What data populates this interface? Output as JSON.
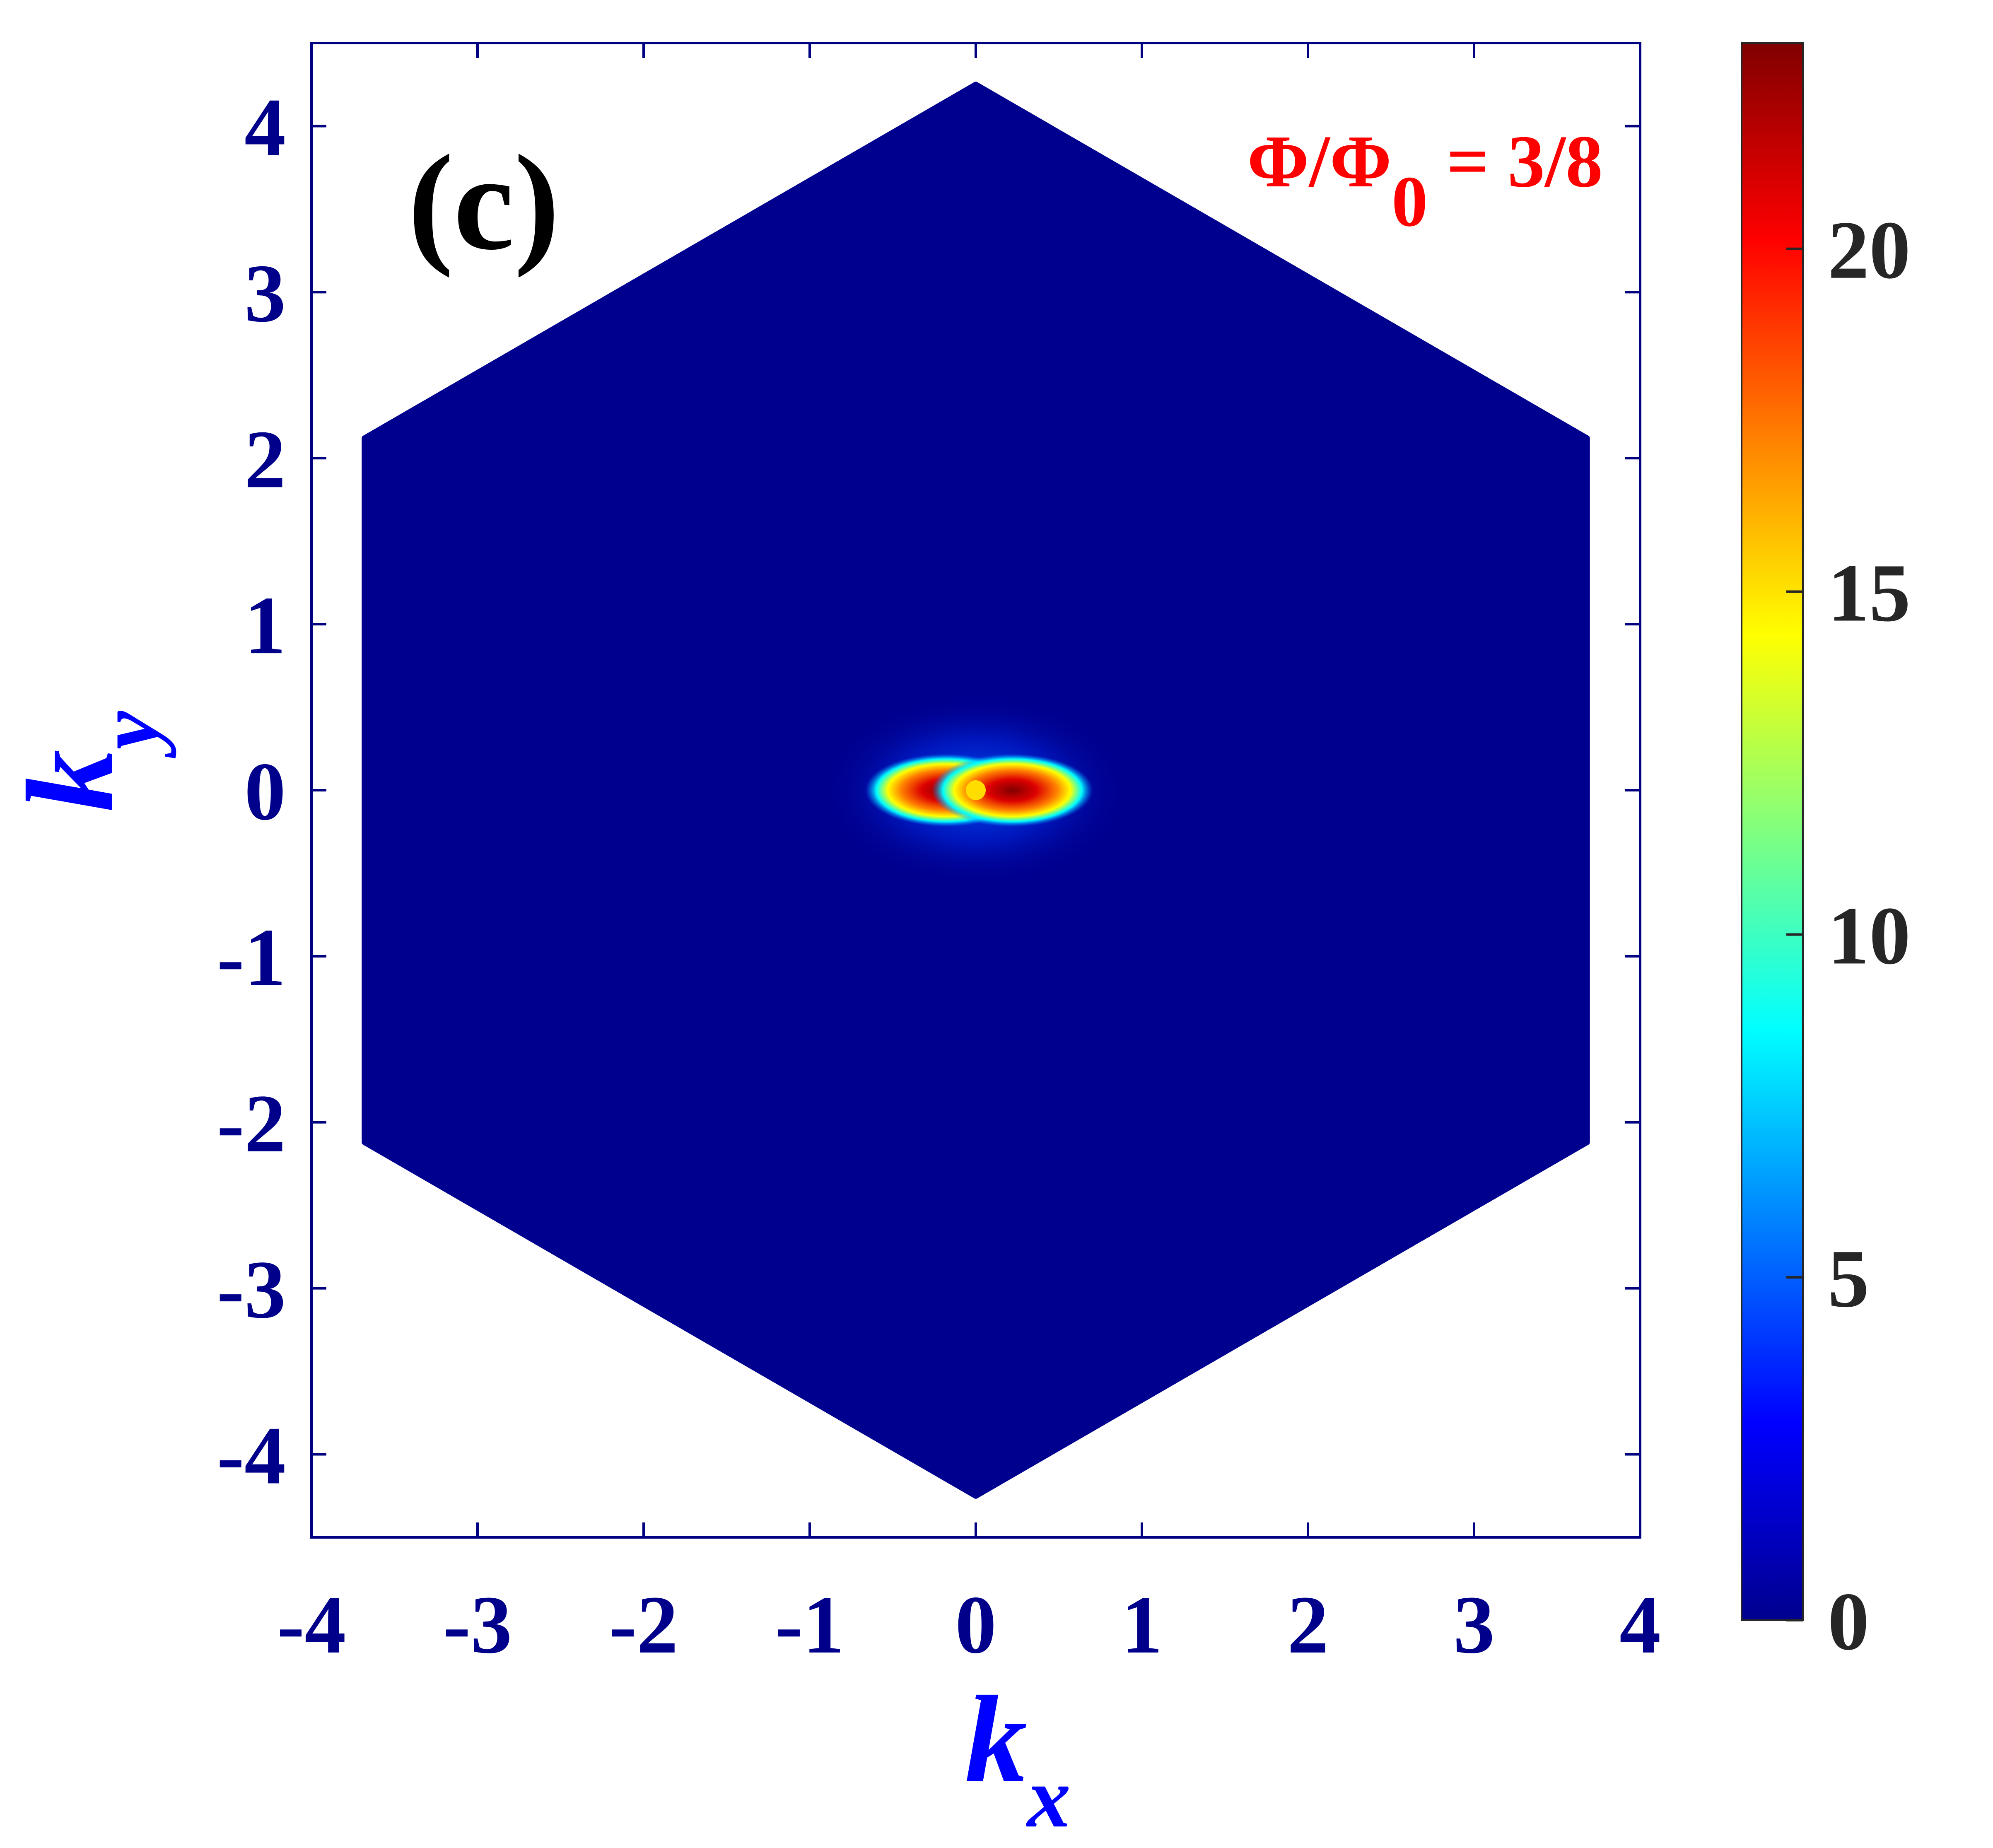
{
  "chart_data": {
    "type": "heatmap",
    "panel_label": "(c)",
    "annotation": {
      "main": "Φ/Φ",
      "subscript": "0",
      "rest": " = 3/8",
      "color": "#ff0000"
    },
    "xlabel": {
      "main": "k",
      "subscript": "x"
    },
    "ylabel": {
      "main": "k",
      "subscript": "y"
    },
    "xlim": [
      -4,
      4
    ],
    "ylim": [
      -4.5,
      4.5
    ],
    "x_ticks": [
      -4,
      -3,
      -2,
      -1,
      0,
      1,
      2,
      3,
      4
    ],
    "x_tick_labels": [
      "-4",
      "-3",
      "-2",
      "-1",
      "0",
      "1",
      "2",
      "3",
      "4"
    ],
    "y_ticks": [
      4,
      3,
      2,
      1,
      0,
      -1,
      -2,
      -3,
      -4
    ],
    "y_tick_labels": [
      "4",
      "3",
      "2",
      "1",
      "0",
      "-1",
      "-2",
      "-3",
      "-4"
    ],
    "grid": false,
    "colormap": "jet",
    "colorbar": {
      "min": 0,
      "max": 23,
      "ticks": [
        0,
        5,
        10,
        15,
        20
      ],
      "tick_labels": [
        "0",
        "5",
        "10",
        "15",
        "20"
      ]
    },
    "region": {
      "shape": "hexagon (Brillouin zone)",
      "vertices": [
        [
          0,
          4.25
        ],
        [
          3.68,
          2.12
        ],
        [
          3.68,
          -2.12
        ],
        [
          0,
          -4.25
        ],
        [
          -3.68,
          -2.12
        ],
        [
          -3.68,
          2.12
        ]
      ],
      "background_value": 0
    },
    "features": [
      {
        "name": "left lobe",
        "center": [
          -0.18,
          0
        ],
        "peak_value": 23
      },
      {
        "name": "right lobe",
        "center": [
          0.22,
          0
        ],
        "peak_value": 23
      },
      {
        "name": "center point",
        "center": [
          0,
          0
        ],
        "value": 15
      }
    ],
    "colors": {
      "axis": "#000080",
      "tick_text": "#00008b",
      "axis_label": "#0000ff",
      "colorbar_text": "#262626",
      "panel_label": "#000000",
      "field": "#00008f"
    }
  }
}
